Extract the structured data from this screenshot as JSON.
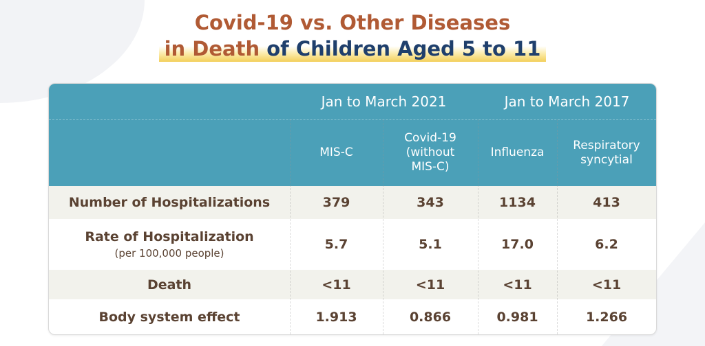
{
  "chart_data": {
    "type": "table",
    "title_line1": "Covid-19 vs. Other Diseases",
    "title_line2_a": "in Death",
    "title_line2_b": "of Children Aged 5 to 11",
    "periods": [
      "Jan to March 2021",
      "Jan to March 2017"
    ],
    "columns": [
      "MIS-C",
      "Covid-19\n(without\nMIS-C)",
      "Influenza",
      "Respiratory\nsyncytial"
    ],
    "rows": [
      {
        "label": "Number of Hospitalizations",
        "note": "",
        "values": [
          "379",
          "343",
          "1134",
          "413"
        ]
      },
      {
        "label": "Rate of Hospitalization",
        "note": "(per 100,000 people)",
        "values": [
          "5.7",
          "5.1",
          "17.0",
          "6.2"
        ]
      },
      {
        "label": "Death",
        "note": "",
        "values": [
          "<11",
          "<11",
          "<11",
          "<11"
        ]
      },
      {
        "label": "Body system effect",
        "note": "",
        "values": [
          "1.913",
          "0.866",
          "0.981",
          "1.266"
        ]
      }
    ],
    "colors": {
      "header": "#4ba0b8",
      "title_orange": "#b05a34",
      "title_navy": "#1f3f6c",
      "text": "#5a4232",
      "stripe": "#f2f2ec",
      "highlight": "#f3cf5a"
    }
  }
}
